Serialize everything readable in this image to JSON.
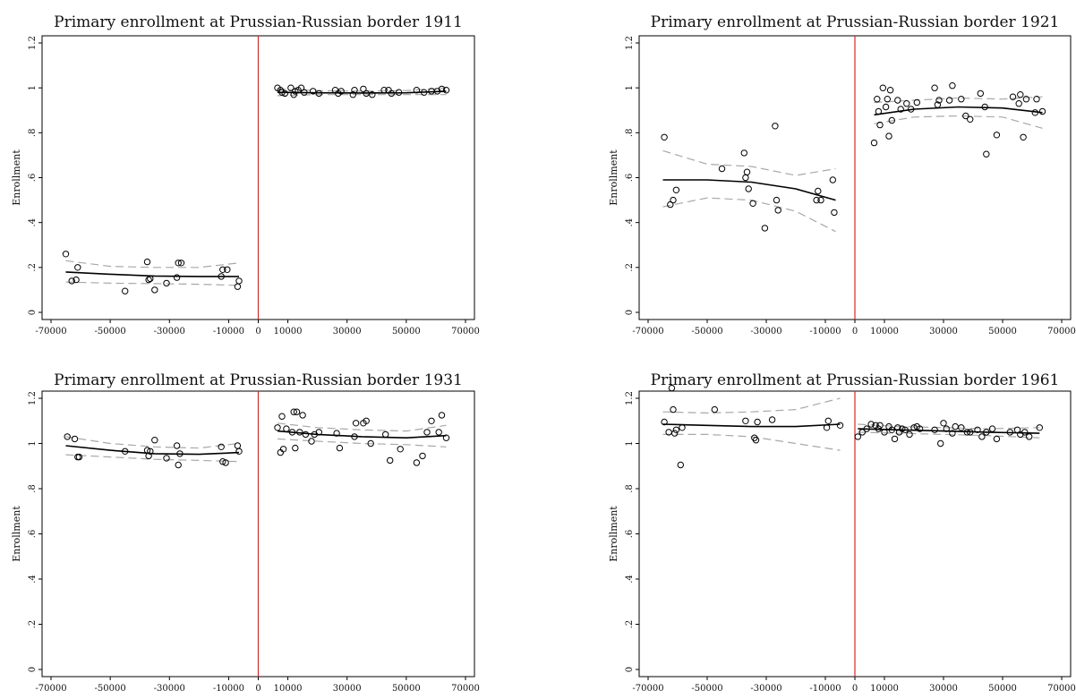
{
  "chart_data": [
    {
      "type": "scatter",
      "title": "Primary enrollment at Prussian-Russian border 1911",
      "ylabel": "Enrollment",
      "xlabel": "",
      "xlim": [
        -70000,
        70000
      ],
      "ylim": [
        0,
        1.2
      ],
      "x_ticks": [
        "-70000",
        "-50000",
        "-30000",
        "-10000",
        "0",
        "10000",
        "30000",
        "50000",
        "70000"
      ],
      "y_ticks": [
        "0",
        ".2",
        ".4",
        ".6",
        ".8",
        "1",
        "1.2"
      ],
      "cutoff": 0,
      "points": [
        [
          -65000,
          0.26
        ],
        [
          -63000,
          0.14
        ],
        [
          -61500,
          0.145
        ],
        [
          -61000,
          0.2
        ],
        [
          -45000,
          0.095
        ],
        [
          -37500,
          0.225
        ],
        [
          -37000,
          0.145
        ],
        [
          -36500,
          0.15
        ],
        [
          -35000,
          0.1
        ],
        [
          -31000,
          0.13
        ],
        [
          -27500,
          0.155
        ],
        [
          -27000,
          0.22
        ],
        [
          -26000,
          0.22
        ],
        [
          -12500,
          0.16
        ],
        [
          -12000,
          0.19
        ],
        [
          -10500,
          0.19
        ],
        [
          -7000,
          0.115
        ],
        [
          -6500,
          0.14
        ],
        [
          6500,
          1.0
        ],
        [
          7500,
          0.99
        ],
        [
          8000,
          0.98
        ],
        [
          9000,
          0.975
        ],
        [
          11000,
          1.0
        ],
        [
          12000,
          0.97
        ],
        [
          12500,
          0.985
        ],
        [
          13500,
          0.99
        ],
        [
          14500,
          1.0
        ],
        [
          15500,
          0.98
        ],
        [
          18500,
          0.985
        ],
        [
          20500,
          0.975
        ],
        [
          26000,
          0.99
        ],
        [
          27000,
          0.975
        ],
        [
          28000,
          0.985
        ],
        [
          32000,
          0.97
        ],
        [
          32500,
          0.99
        ],
        [
          35500,
          0.995
        ],
        [
          36500,
          0.975
        ],
        [
          38500,
          0.97
        ],
        [
          42500,
          0.99
        ],
        [
          44000,
          0.99
        ],
        [
          45000,
          0.975
        ],
        [
          47500,
          0.98
        ],
        [
          53500,
          0.99
        ],
        [
          56000,
          0.98
        ],
        [
          58500,
          0.985
        ],
        [
          60500,
          0.985
        ],
        [
          62000,
          0.995
        ],
        [
          63500,
          0.99
        ]
      ],
      "fit": [
        {
          "x": [
            -65000,
            -50000,
            -35000,
            -20000,
            -6500
          ],
          "y": [
            0.18,
            0.17,
            0.162,
            0.16,
            0.16
          ],
          "lo": [
            0.135,
            0.13,
            0.128,
            0.125,
            0.12
          ],
          "hi": [
            0.23,
            0.205,
            0.2,
            0.2,
            0.22
          ]
        },
        {
          "x": [
            6500,
            20000,
            35000,
            50000,
            63500
          ],
          "y": [
            0.98,
            0.978,
            0.977,
            0.978,
            0.985
          ],
          "lo": [
            0.965,
            0.97,
            0.97,
            0.97,
            0.97
          ],
          "hi": [
            0.995,
            0.988,
            0.985,
            0.988,
            1.0
          ]
        }
      ]
    },
    {
      "type": "scatter",
      "title": "Primary enrollment at Prussian-Russian border 1921",
      "ylabel": "Enrollment",
      "xlabel": "",
      "xlim": [
        -70000,
        70000
      ],
      "ylim": [
        0,
        1.2
      ],
      "x_ticks": [
        "-70000",
        "-50000",
        "-30000",
        "-10000",
        "0",
        "10000",
        "30000",
        "50000",
        "70000"
      ],
      "y_ticks": [
        "0",
        ".2",
        ".4",
        ".6",
        ".8",
        "1",
        "1.2"
      ],
      "cutoff": 0,
      "points": [
        [
          -64500,
          0.78
        ],
        [
          -62500,
          0.48
        ],
        [
          -61500,
          0.5
        ],
        [
          -60500,
          0.545
        ],
        [
          -45000,
          0.64
        ],
        [
          -37500,
          0.71
        ],
        [
          -37000,
          0.6
        ],
        [
          -36500,
          0.625
        ],
        [
          -36000,
          0.55
        ],
        [
          -34500,
          0.485
        ],
        [
          -30500,
          0.375
        ],
        [
          -27000,
          0.83
        ],
        [
          -26500,
          0.5
        ],
        [
          -26000,
          0.455
        ],
        [
          -13000,
          0.5
        ],
        [
          -12500,
          0.54
        ],
        [
          -11500,
          0.5
        ],
        [
          -7500,
          0.59
        ],
        [
          -7000,
          0.445
        ],
        [
          6500,
          0.755
        ],
        [
          7500,
          0.95
        ],
        [
          8000,
          0.895
        ],
        [
          8500,
          0.835
        ],
        [
          9500,
          1.0
        ],
        [
          10500,
          0.915
        ],
        [
          11000,
          0.95
        ],
        [
          11500,
          0.785
        ],
        [
          12000,
          0.99
        ],
        [
          12500,
          0.855
        ],
        [
          14500,
          0.945
        ],
        [
          15500,
          0.905
        ],
        [
          17500,
          0.93
        ],
        [
          19000,
          0.905
        ],
        [
          21000,
          0.935
        ],
        [
          27000,
          1.0
        ],
        [
          28000,
          0.925
        ],
        [
          28500,
          0.945
        ],
        [
          32000,
          0.945
        ],
        [
          33000,
          1.01
        ],
        [
          36000,
          0.95
        ],
        [
          37500,
          0.875
        ],
        [
          39000,
          0.86
        ],
        [
          42500,
          0.975
        ],
        [
          44000,
          0.915
        ],
        [
          44500,
          0.705
        ],
        [
          48000,
          0.79
        ],
        [
          53500,
          0.96
        ],
        [
          55500,
          0.93
        ],
        [
          56000,
          0.97
        ],
        [
          57000,
          0.78
        ],
        [
          58000,
          0.95
        ],
        [
          61000,
          0.89
        ],
        [
          61500,
          0.95
        ],
        [
          63500,
          0.895
        ]
      ],
      "fit": [
        {
          "x": [
            -65000,
            -50000,
            -35000,
            -20000,
            -6500
          ],
          "y": [
            0.59,
            0.59,
            0.58,
            0.55,
            0.5
          ],
          "lo": [
            0.47,
            0.51,
            0.5,
            0.45,
            0.36
          ],
          "hi": [
            0.72,
            0.66,
            0.65,
            0.61,
            0.64
          ]
        },
        {
          "x": [
            6500,
            20000,
            35000,
            50000,
            63500
          ],
          "y": [
            0.88,
            0.905,
            0.915,
            0.91,
            0.89
          ],
          "lo": [
            0.84,
            0.87,
            0.875,
            0.87,
            0.82
          ],
          "hi": [
            0.935,
            0.945,
            0.955,
            0.95,
            0.96
          ]
        }
      ]
    },
    {
      "type": "scatter",
      "title": "Primary enrollment at Prussian-Russian border 1931",
      "ylabel": "Enrollment",
      "xlabel": "",
      "xlim": [
        -70000,
        70000
      ],
      "ylim": [
        0,
        1.2
      ],
      "x_ticks": [
        "-70000",
        "-50000",
        "-30000",
        "-10000",
        "0",
        "10000",
        "30000",
        "50000",
        "70000"
      ],
      "y_ticks": [
        "0",
        ".2",
        ".4",
        ".6",
        ".8",
        "1",
        "1.2"
      ],
      "cutoff": 0,
      "points": [
        [
          -64500,
          1.03
        ],
        [
          -62000,
          1.02
        ],
        [
          -61000,
          0.94
        ],
        [
          -60500,
          0.94
        ],
        [
          -45000,
          0.965
        ],
        [
          -37500,
          0.97
        ],
        [
          -37000,
          0.945
        ],
        [
          -36500,
          0.965
        ],
        [
          -35000,
          1.015
        ],
        [
          -31000,
          0.935
        ],
        [
          -27500,
          0.99
        ],
        [
          -27000,
          0.905
        ],
        [
          -26500,
          0.955
        ],
        [
          -12500,
          0.985
        ],
        [
          -12000,
          0.92
        ],
        [
          -11000,
          0.915
        ],
        [
          -7000,
          0.99
        ],
        [
          -6500,
          0.965
        ],
        [
          6500,
          1.07
        ],
        [
          7500,
          0.96
        ],
        [
          8000,
          1.12
        ],
        [
          8500,
          0.975
        ],
        [
          9500,
          1.065
        ],
        [
          11500,
          1.05
        ],
        [
          12000,
          1.14
        ],
        [
          12500,
          0.98
        ],
        [
          13000,
          1.14
        ],
        [
          14000,
          1.05
        ],
        [
          15000,
          1.125
        ],
        [
          16000,
          1.04
        ],
        [
          18000,
          1.01
        ],
        [
          19000,
          1.04
        ],
        [
          20500,
          1.05
        ],
        [
          26500,
          1.045
        ],
        [
          27500,
          0.98
        ],
        [
          32500,
          1.03
        ],
        [
          33000,
          1.09
        ],
        [
          35500,
          1.09
        ],
        [
          36500,
          1.1
        ],
        [
          38000,
          1.0
        ],
        [
          43000,
          1.04
        ],
        [
          44500,
          0.925
        ],
        [
          48000,
          0.975
        ],
        [
          53500,
          0.915
        ],
        [
          55500,
          0.945
        ],
        [
          57000,
          1.05
        ],
        [
          58500,
          1.1
        ],
        [
          61000,
          1.05
        ],
        [
          62000,
          1.125
        ],
        [
          63500,
          1.025
        ]
      ],
      "fit": [
        {
          "x": [
            -65000,
            -50000,
            -35000,
            -20000,
            -6500
          ],
          "y": [
            0.99,
            0.97,
            0.955,
            0.952,
            0.96
          ],
          "lo": [
            0.95,
            0.94,
            0.93,
            0.925,
            0.92
          ],
          "hi": [
            1.03,
            1.0,
            0.985,
            0.98,
            1.0
          ]
        },
        {
          "x": [
            6500,
            20000,
            35000,
            50000,
            63500
          ],
          "y": [
            1.055,
            1.04,
            1.03,
            1.025,
            1.035
          ],
          "lo": [
            1.02,
            1.01,
            1.0,
            0.995,
            0.985
          ],
          "hi": [
            1.09,
            1.07,
            1.06,
            1.055,
            1.08
          ]
        }
      ]
    },
    {
      "type": "scatter",
      "title": "Primary enrollment at Prussian-Russian border 1961",
      "ylabel": "Enrollment",
      "xlabel": "",
      "xlim": [
        -70000,
        70000
      ],
      "ylim": [
        0,
        1.2
      ],
      "x_ticks": [
        "-70000",
        "-50000",
        "-30000",
        "-10000",
        "0",
        "10000",
        "30000",
        "50000",
        "70000"
      ],
      "y_ticks": [
        "0",
        ".2",
        ".4",
        ".6",
        ".8",
        "1",
        "1.2"
      ],
      "cutoff": 0,
      "points": [
        [
          -64500,
          1.095
        ],
        [
          -63000,
          1.05
        ],
        [
          -62000,
          1.245
        ],
        [
          -61500,
          1.15
        ],
        [
          -61000,
          1.045
        ],
        [
          -60500,
          1.06
        ],
        [
          -59000,
          0.905
        ],
        [
          -58500,
          1.07
        ],
        [
          -47500,
          1.15
        ],
        [
          -37000,
          1.1
        ],
        [
          -34000,
          1.025
        ],
        [
          -33500,
          1.015
        ],
        [
          -33000,
          1.095
        ],
        [
          -28000,
          1.105
        ],
        [
          -9500,
          1.07
        ],
        [
          -9000,
          1.1
        ],
        [
          -5000,
          1.08
        ],
        [
          1000,
          1.03
        ],
        [
          2500,
          1.05
        ],
        [
          4000,
          1.065
        ],
        [
          5500,
          1.085
        ],
        [
          7000,
          1.08
        ],
        [
          8000,
          1.065
        ],
        [
          8500,
          1.08
        ],
        [
          10000,
          1.05
        ],
        [
          11500,
          1.075
        ],
        [
          12500,
          1.06
        ],
        [
          13500,
          1.02
        ],
        [
          14500,
          1.07
        ],
        [
          15000,
          1.05
        ],
        [
          16000,
          1.065
        ],
        [
          17000,
          1.06
        ],
        [
          18500,
          1.04
        ],
        [
          20000,
          1.07
        ],
        [
          21000,
          1.075
        ],
        [
          22000,
          1.065
        ],
        [
          27000,
          1.06
        ],
        [
          29000,
          1.0
        ],
        [
          30000,
          1.09
        ],
        [
          31000,
          1.065
        ],
        [
          33000,
          1.045
        ],
        [
          34000,
          1.075
        ],
        [
          36000,
          1.07
        ],
        [
          38000,
          1.05
        ],
        [
          39000,
          1.05
        ],
        [
          41500,
          1.06
        ],
        [
          43000,
          1.03
        ],
        [
          44500,
          1.05
        ],
        [
          46500,
          1.065
        ],
        [
          48000,
          1.02
        ],
        [
          52500,
          1.05
        ],
        [
          55000,
          1.06
        ],
        [
          56000,
          1.04
        ],
        [
          57500,
          1.05
        ],
        [
          59000,
          1.03
        ],
        [
          62500,
          1.07
        ]
      ],
      "fit": [
        {
          "x": [
            -65000,
            -50000,
            -35000,
            -20000,
            -5000
          ],
          "y": [
            1.085,
            1.08,
            1.075,
            1.075,
            1.085
          ],
          "lo": [
            1.04,
            1.04,
            1.03,
            1.0,
            0.97
          ],
          "hi": [
            1.14,
            1.135,
            1.14,
            1.15,
            1.2
          ]
        },
        {
          "x": [
            1000,
            15000,
            30000,
            45000,
            62500
          ],
          "y": [
            1.065,
            1.06,
            1.055,
            1.05,
            1.045
          ],
          "lo": [
            1.05,
            1.045,
            1.04,
            1.035,
            1.025
          ],
          "hi": [
            1.085,
            1.075,
            1.07,
            1.065,
            1.07
          ]
        }
      ]
    }
  ]
}
